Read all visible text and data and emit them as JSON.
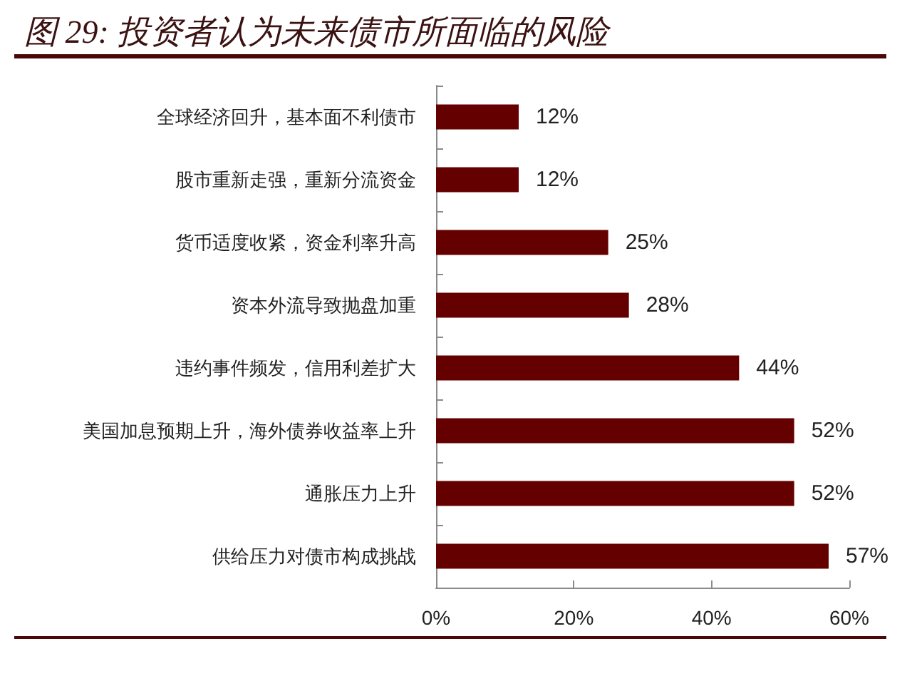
{
  "chart_data": {
    "type": "bar",
    "orientation": "horizontal",
    "title": "图 29: 投资者认为未来债市所面临的风险",
    "categories": [
      "全球经济回升，基本面不利债市",
      "股市重新走强，重新分流资金",
      "货币适度收紧，资金利率升高",
      "资本外流导致抛盘加重",
      "违约事件频发，信用利差扩大",
      "美国加息预期上升，海外债券收益率上升",
      "通胀压力上升",
      "供给压力对债市构成挑战"
    ],
    "values": [
      12,
      12,
      25,
      28,
      44,
      52,
      52,
      57
    ],
    "value_labels": [
      "12%",
      "12%",
      "25%",
      "28%",
      "44%",
      "52%",
      "52%",
      "57%"
    ],
    "color": "#650000",
    "xlim": [
      0,
      60
    ],
    "xticks": [
      {
        "value": 0,
        "label": "0%"
      },
      {
        "value": 20,
        "label": "20%"
      },
      {
        "value": 40,
        "label": "40%"
      },
      {
        "value": 60,
        "label": "60%"
      }
    ],
    "grid": false
  }
}
